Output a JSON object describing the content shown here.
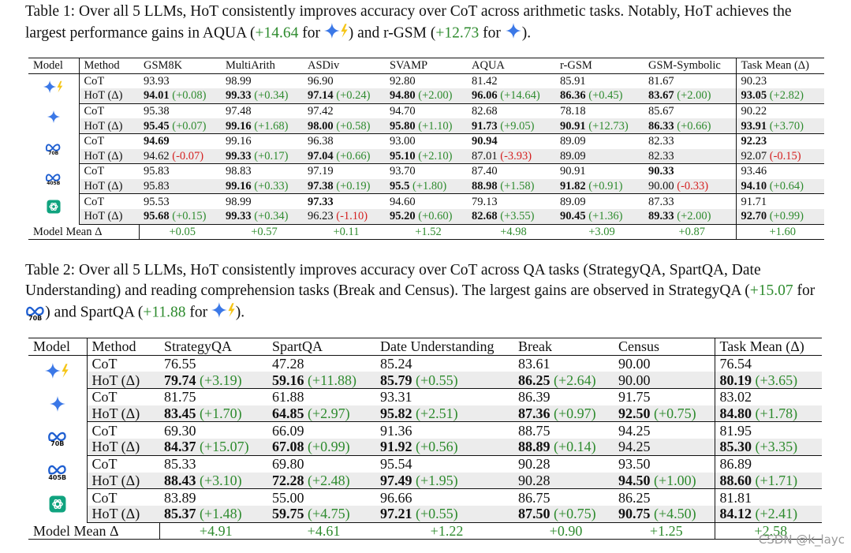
{
  "table1": {
    "caption": {
      "prefix": "Table 1: Over all 5 LLMs, HoT consistently improves accuracy over CoT across arithmetic tasks. Notably, HoT achieves the largest performance gains in AQUA (",
      "gain1": "+14.64",
      "mid1": " for ",
      "mid2": ") and r-GSM (",
      "gain2": "+12.73",
      "mid3": " for ",
      "suffix": ")."
    },
    "headers": [
      "Model",
      "Method",
      "GSM8K",
      "MultiArith",
      "ASDiv",
      "SVAMP",
      "AQUA",
      "r-GSM",
      "GSM-Symbolic",
      "Task Mean (Δ)"
    ],
    "groups": [
      {
        "model_icon": "gemini-flash-icon",
        "rows": [
          {
            "method": "CoT",
            "cells": [
              {
                "v": "93.93"
              },
              {
                "v": "98.99"
              },
              {
                "v": "96.90"
              },
              {
                "v": "92.80"
              },
              {
                "v": "81.42"
              },
              {
                "v": "85.91"
              },
              {
                "v": "81.67"
              },
              {
                "v": "90.23"
              }
            ]
          },
          {
            "method": "HoT (Δ)",
            "cells": [
              {
                "v": "94.01",
                "b": true,
                "d": "(+0.08)",
                "c": "g"
              },
              {
                "v": "99.33",
                "b": true,
                "d": "(+0.34)",
                "c": "g"
              },
              {
                "v": "97.14",
                "b": true,
                "d": "(+0.24)",
                "c": "g"
              },
              {
                "v": "94.80",
                "b": true,
                "d": "(+2.00)",
                "c": "g"
              },
              {
                "v": "96.06",
                "b": true,
                "d": "(+14.64)",
                "c": "g"
              },
              {
                "v": "86.36",
                "b": true,
                "d": "(+0.45)",
                "c": "g"
              },
              {
                "v": "83.67",
                "b": true,
                "d": "(+2.00)",
                "c": "g"
              },
              {
                "v": "93.05",
                "b": true,
                "d": "(+2.82)",
                "c": "g"
              }
            ]
          }
        ]
      },
      {
        "model_icon": "gemini-pro-icon",
        "rows": [
          {
            "method": "CoT",
            "cells": [
              {
                "v": "95.38"
              },
              {
                "v": "97.48"
              },
              {
                "v": "97.42"
              },
              {
                "v": "94.70"
              },
              {
                "v": "82.68"
              },
              {
                "v": "78.18"
              },
              {
                "v": "85.67"
              },
              {
                "v": "90.22"
              }
            ]
          },
          {
            "method": "HoT (Δ)",
            "cells": [
              {
                "v": "95.45",
                "b": true,
                "d": "(+0.07)",
                "c": "g"
              },
              {
                "v": "99.16",
                "b": true,
                "d": "(+1.68)",
                "c": "g"
              },
              {
                "v": "98.00",
                "b": true,
                "d": "(+0.58)",
                "c": "g"
              },
              {
                "v": "95.80",
                "b": true,
                "d": "(+1.10)",
                "c": "g"
              },
              {
                "v": "91.73",
                "b": true,
                "d": "(+9.05)",
                "c": "g"
              },
              {
                "v": "90.91",
                "b": true,
                "d": "(+12.73)",
                "c": "g"
              },
              {
                "v": "86.33",
                "b": true,
                "d": "(+0.66)",
                "c": "g"
              },
              {
                "v": "93.91",
                "b": true,
                "d": "(+3.70)",
                "c": "g"
              }
            ]
          }
        ]
      },
      {
        "model_icon": "llama-70b-icon",
        "model_label": "70B",
        "rows": [
          {
            "method": "CoT",
            "cells": [
              {
                "v": "94.69",
                "b": true
              },
              {
                "v": "99.16"
              },
              {
                "v": "96.38"
              },
              {
                "v": "93.00"
              },
              {
                "v": "90.94",
                "b": true
              },
              {
                "v": "89.09"
              },
              {
                "v": "82.33"
              },
              {
                "v": "92.23",
                "b": true
              }
            ]
          },
          {
            "method": "HoT (Δ)",
            "cells": [
              {
                "v": "94.62",
                "d": "(-0.07)",
                "c": "r"
              },
              {
                "v": "99.33",
                "b": true,
                "d": "(+0.17)",
                "c": "g"
              },
              {
                "v": "97.04",
                "b": true,
                "d": "(+0.66)",
                "c": "g"
              },
              {
                "v": "95.10",
                "b": true,
                "d": "(+2.10)",
                "c": "g"
              },
              {
                "v": "87.01",
                "d": "(-3.93)",
                "c": "r"
              },
              {
                "v": "89.09"
              },
              {
                "v": "82.33"
              },
              {
                "v": "92.07",
                "d": "(-0.15)",
                "c": "r"
              }
            ]
          }
        ]
      },
      {
        "model_icon": "llama-405b-icon",
        "model_label": "405B",
        "rows": [
          {
            "method": "CoT",
            "cells": [
              {
                "v": "95.83"
              },
              {
                "v": "98.83"
              },
              {
                "v": "97.19"
              },
              {
                "v": "93.70"
              },
              {
                "v": "87.40"
              },
              {
                "v": "90.91"
              },
              {
                "v": "90.33",
                "b": true
              },
              {
                "v": "93.46"
              }
            ]
          },
          {
            "method": "HoT (Δ)",
            "cells": [
              {
                "v": "95.83"
              },
              {
                "v": "99.16",
                "b": true,
                "d": "(+0.33)",
                "c": "g"
              },
              {
                "v": "97.38",
                "b": true,
                "d": "(+0.19)",
                "c": "g"
              },
              {
                "v": "95.5",
                "b": true,
                "d": "(+1.80)",
                "c": "g"
              },
              {
                "v": "88.98",
                "b": true,
                "d": "(+1.58)",
                "c": "g"
              },
              {
                "v": "91.82",
                "b": true,
                "d": "(+0.91)",
                "c": "g"
              },
              {
                "v": "90.00",
                "d": "(-0.33)",
                "c": "r"
              },
              {
                "v": "94.10",
                "b": true,
                "d": "(+0.64)",
                "c": "g"
              }
            ]
          }
        ]
      },
      {
        "model_icon": "openai-icon",
        "rows": [
          {
            "method": "CoT",
            "cells": [
              {
                "v": "95.53"
              },
              {
                "v": "98.99"
              },
              {
                "v": "97.33",
                "b": true
              },
              {
                "v": "94.60"
              },
              {
                "v": "79.13"
              },
              {
                "v": "89.09"
              },
              {
                "v": "87.33"
              },
              {
                "v": "91.71"
              }
            ]
          },
          {
            "method": "HoT (Δ)",
            "cells": [
              {
                "v": "95.68",
                "b": true,
                "d": "(+0.15)",
                "c": "g"
              },
              {
                "v": "99.33",
                "b": true,
                "d": "(+0.34)",
                "c": "g"
              },
              {
                "v": "96.23",
                "d": "(-1.10)",
                "c": "r"
              },
              {
                "v": "95.20",
                "b": true,
                "d": "(+0.60)",
                "c": "g"
              },
              {
                "v": "82.68",
                "b": true,
                "d": "(+3.55)",
                "c": "g"
              },
              {
                "v": "90.45",
                "b": true,
                "d": "(+1.36)",
                "c": "g"
              },
              {
                "v": "89.33",
                "b": true,
                "d": "(+2.00)",
                "c": "g"
              },
              {
                "v": "92.70",
                "b": true,
                "d": "(+0.99)",
                "c": "g"
              }
            ]
          }
        ]
      }
    ],
    "mean_label": "Model Mean Δ",
    "mean_values": [
      "+0.05",
      "+0.57",
      "+0.11",
      "+1.52",
      "+4.98",
      "+3.09",
      "+0.87",
      "+1.60"
    ]
  },
  "table2": {
    "caption": {
      "prefix": "Table 2: Over all 5 LLMs, HoT consistently improves accuracy over CoT across QA tasks (StrategyQA, SpartQA, Date Understanding) and reading comprehension tasks (Break and Census). The largest gains are observed in StrategyQA (",
      "gain1": "+15.07",
      "mid1": " for ",
      "logo_label": "70B",
      "mid2": ") and SpartQA (",
      "gain2": "+11.88",
      "mid3": " for ",
      "suffix": ")."
    },
    "headers": [
      "Model",
      "Method",
      "StrategyQA",
      "SpartQA",
      "Date Understanding",
      "Break",
      "Census",
      "Task Mean (Δ)"
    ],
    "groups": [
      {
        "model_icon": "gemini-flash-icon",
        "rows": [
          {
            "method": "CoT",
            "cells": [
              {
                "v": "76.55"
              },
              {
                "v": "47.28"
              },
              {
                "v": "85.24"
              },
              {
                "v": "83.61"
              },
              {
                "v": "90.00"
              },
              {
                "v": "76.54"
              }
            ]
          },
          {
            "method": "HoT (Δ)",
            "cells": [
              {
                "v": "79.74",
                "b": true,
                "d": "(+3.19)",
                "c": "g"
              },
              {
                "v": "59.16",
                "b": true,
                "d": "(+11.88)",
                "c": "g"
              },
              {
                "v": "85.79",
                "b": true,
                "d": "(+0.55)",
                "c": "g"
              },
              {
                "v": "86.25",
                "b": true,
                "d": "(+2.64)",
                "c": "g"
              },
              {
                "v": "90.00"
              },
              {
                "v": "80.19",
                "b": true,
                "d": "(+3.65)",
                "c": "g"
              }
            ]
          }
        ]
      },
      {
        "model_icon": "gemini-pro-icon",
        "rows": [
          {
            "method": "CoT",
            "cells": [
              {
                "v": "81.75"
              },
              {
                "v": "61.88"
              },
              {
                "v": "93.31"
              },
              {
                "v": "86.39"
              },
              {
                "v": "91.75"
              },
              {
                "v": "83.02"
              }
            ]
          },
          {
            "method": "HoT (Δ)",
            "cells": [
              {
                "v": "83.45",
                "b": true,
                "d": "(+1.70)",
                "c": "g"
              },
              {
                "v": "64.85",
                "b": true,
                "d": "(+2.97)",
                "c": "g"
              },
              {
                "v": "95.82",
                "b": true,
                "d": "(+2.51)",
                "c": "g"
              },
              {
                "v": "87.36",
                "b": true,
                "d": "(+0.97)",
                "c": "g"
              },
              {
                "v": "92.50",
                "b": true,
                "d": "(+0.75)",
                "c": "g"
              },
              {
                "v": "84.80",
                "b": true,
                "d": "(+1.78)",
                "c": "g"
              }
            ]
          }
        ]
      },
      {
        "model_icon": "llama-70b-icon",
        "model_label": "70B",
        "rows": [
          {
            "method": "CoT",
            "cells": [
              {
                "v": "69.30"
              },
              {
                "v": "66.09"
              },
              {
                "v": "91.36"
              },
              {
                "v": "88.75"
              },
              {
                "v": "94.25"
              },
              {
                "v": "81.95"
              }
            ]
          },
          {
            "method": "HoT (Δ)",
            "cells": [
              {
                "v": "84.37",
                "b": true,
                "d": "(+15.07)",
                "c": "g"
              },
              {
                "v": "67.08",
                "b": true,
                "d": "(+0.99)",
                "c": "g"
              },
              {
                "v": "91.92",
                "b": true,
                "d": "(+0.56)",
                "c": "g"
              },
              {
                "v": "88.89",
                "b": true,
                "d": "(+0.14)",
                "c": "g"
              },
              {
                "v": "94.25"
              },
              {
                "v": "85.30",
                "b": true,
                "d": "(+3.35)",
                "c": "g"
              }
            ]
          }
        ]
      },
      {
        "model_icon": "llama-405b-icon",
        "model_label": "405B",
        "rows": [
          {
            "method": "CoT",
            "cells": [
              {
                "v": "85.33"
              },
              {
                "v": "69.80"
              },
              {
                "v": "95.54"
              },
              {
                "v": "90.28"
              },
              {
                "v": "93.50"
              },
              {
                "v": "86.89"
              }
            ]
          },
          {
            "method": "HoT (Δ)",
            "cells": [
              {
                "v": "88.43",
                "b": true,
                "d": "(+3.10)",
                "c": "g"
              },
              {
                "v": "72.28",
                "b": true,
                "d": "(+2.48)",
                "c": "g"
              },
              {
                "v": "97.49",
                "b": true,
                "d": "(+1.95)",
                "c": "g"
              },
              {
                "v": "90.28"
              },
              {
                "v": "94.50",
                "b": true,
                "d": "(+1.00)",
                "c": "g"
              },
              {
                "v": "88.60",
                "b": true,
                "d": "(+1.71)",
                "c": "g"
              }
            ]
          }
        ]
      },
      {
        "model_icon": "openai-icon",
        "rows": [
          {
            "method": "CoT",
            "cells": [
              {
                "v": "83.89"
              },
              {
                "v": "55.00"
              },
              {
                "v": "96.66"
              },
              {
                "v": "86.75"
              },
              {
                "v": "86.25"
              },
              {
                "v": "81.81"
              }
            ]
          },
          {
            "method": "HoT (Δ)",
            "cells": [
              {
                "v": "85.37",
                "b": true,
                "d": "(+1.48)",
                "c": "g"
              },
              {
                "v": "59.75",
                "b": true,
                "d": "(+4.75)",
                "c": "g"
              },
              {
                "v": "97.21",
                "b": true,
                "d": "(+0.55)",
                "c": "g"
              },
              {
                "v": "87.50",
                "b": true,
                "d": "(+0.75)",
                "c": "g"
              },
              {
                "v": "90.75",
                "b": true,
                "d": "(+4.50)",
                "c": "g"
              },
              {
                "v": "84.12",
                "b": true,
                "d": "(+2.41)",
                "c": "g"
              }
            ]
          }
        ]
      }
    ],
    "mean_label": "Model Mean Δ",
    "mean_values": [
      "+4.91",
      "+4.61",
      "+1.22",
      "+0.90",
      "+1.25",
      "+2.58"
    ]
  },
  "watermark": "CSDN @k_layc",
  "colors": {
    "gain": "#2e8b2e",
    "loss": "#d42020",
    "hot_row_bg": "#ececec",
    "gemini_blue": "#3b78e7",
    "flash_yellow": "#f5c518",
    "meta_blue": "#1f5fd1",
    "openai_green": "#10a37f"
  }
}
